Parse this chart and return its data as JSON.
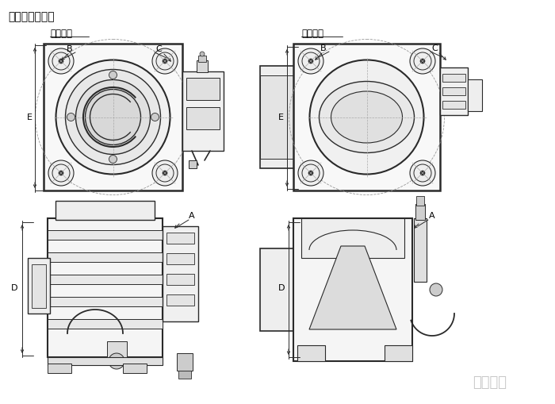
{
  "title": "主要安装尺寸：",
  "label_vertical": "竖直进气",
  "label_horizontal": "水平进气",
  "watermark": "全配优品",
  "bg_color": "#ffffff",
  "lc": "#2a2a2a",
  "dc": "#2a2a2a",
  "mg": "#777777",
  "fig_width": 7.0,
  "fig_height": 5.09,
  "dpi": 100
}
